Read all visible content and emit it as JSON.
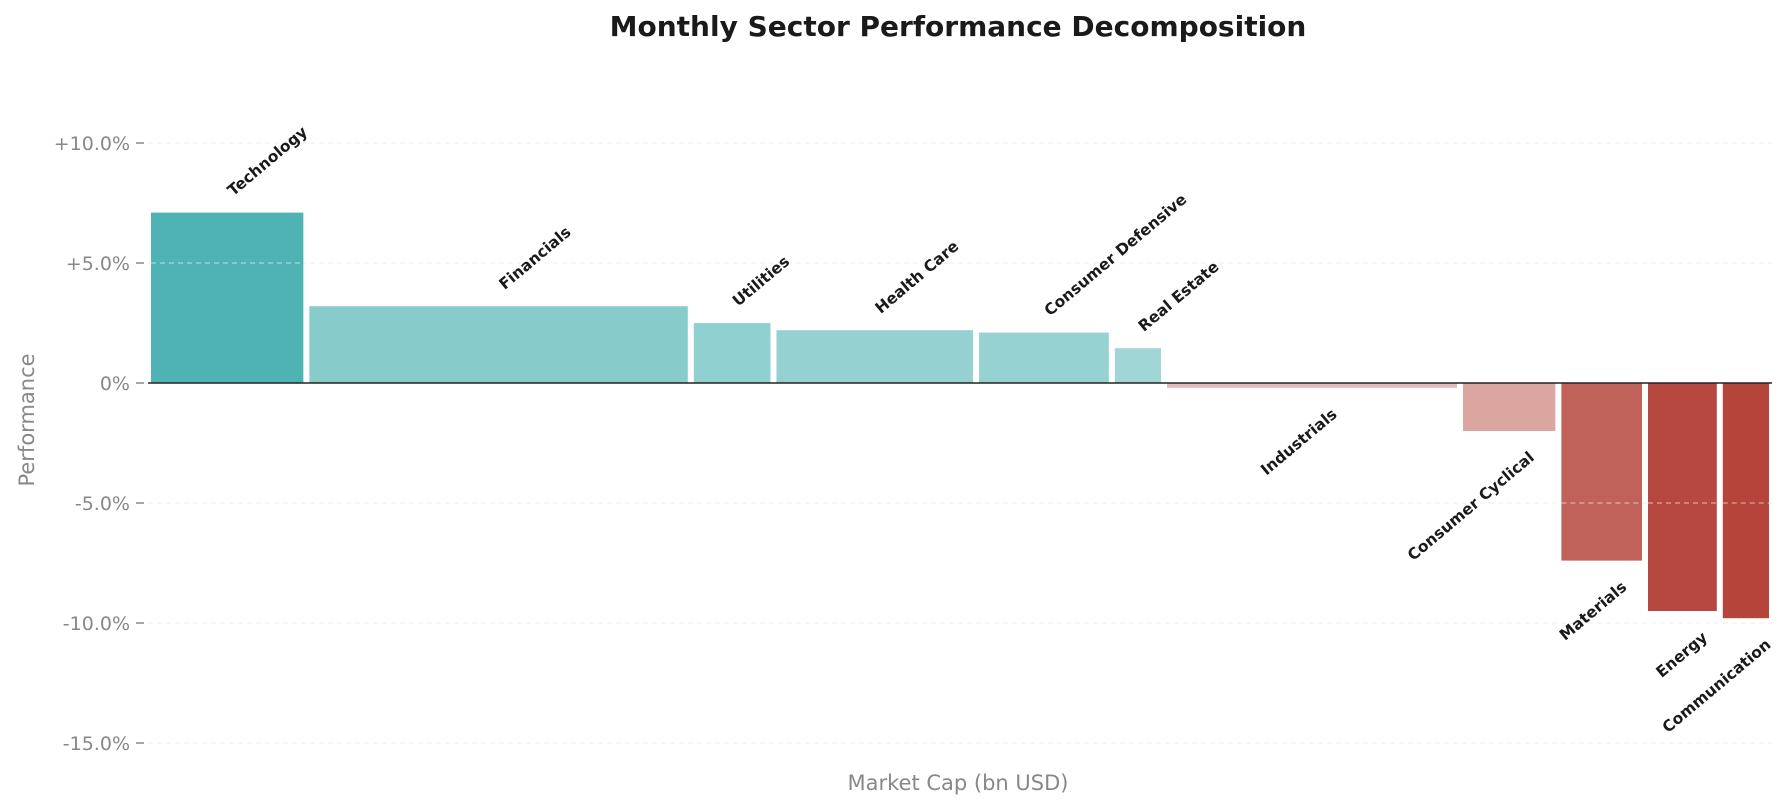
{
  "chart_data": {
    "type": "bar",
    "variable_width": true,
    "title": "Monthly Sector Performance Decomposition",
    "xlabel": "Market Cap (bn USD)",
    "ylabel": "Performance",
    "ylim": [
      -15,
      11.5
    ],
    "yticks": [
      10,
      5,
      0,
      -5,
      -10,
      -15
    ],
    "ytick_labels": [
      "+10.0%",
      "+5.0%",
      "0%",
      "-5.0%",
      "-10.0%",
      "-15.0%"
    ],
    "grid": true,
    "colors": {
      "positive": "#29a3a3",
      "negative": "#b5443b"
    },
    "bars": [
      {
        "category": "Technology",
        "market_cap": 155,
        "value": 7.1
      },
      {
        "category": "Financials",
        "market_cap": 385,
        "value": 3.2
      },
      {
        "category": "Utilities",
        "market_cap": 78,
        "value": 2.5
      },
      {
        "category": "Health Care",
        "market_cap": 200,
        "value": 2.2
      },
      {
        "category": "Consumer Defensive",
        "market_cap": 132,
        "value": 2.1
      },
      {
        "category": "Real Estate",
        "market_cap": 47,
        "value": 1.45
      },
      {
        "category": "Industrials",
        "market_cap": 295,
        "value": -0.2
      },
      {
        "category": "Consumer Cyclical",
        "market_cap": 94,
        "value": -2.0
      },
      {
        "category": "Materials",
        "market_cap": 82,
        "value": -7.4
      },
      {
        "category": "Energy",
        "market_cap": 70,
        "value": -9.5
      },
      {
        "category": "Communication",
        "market_cap": 47,
        "value": -9.8
      }
    ]
  }
}
